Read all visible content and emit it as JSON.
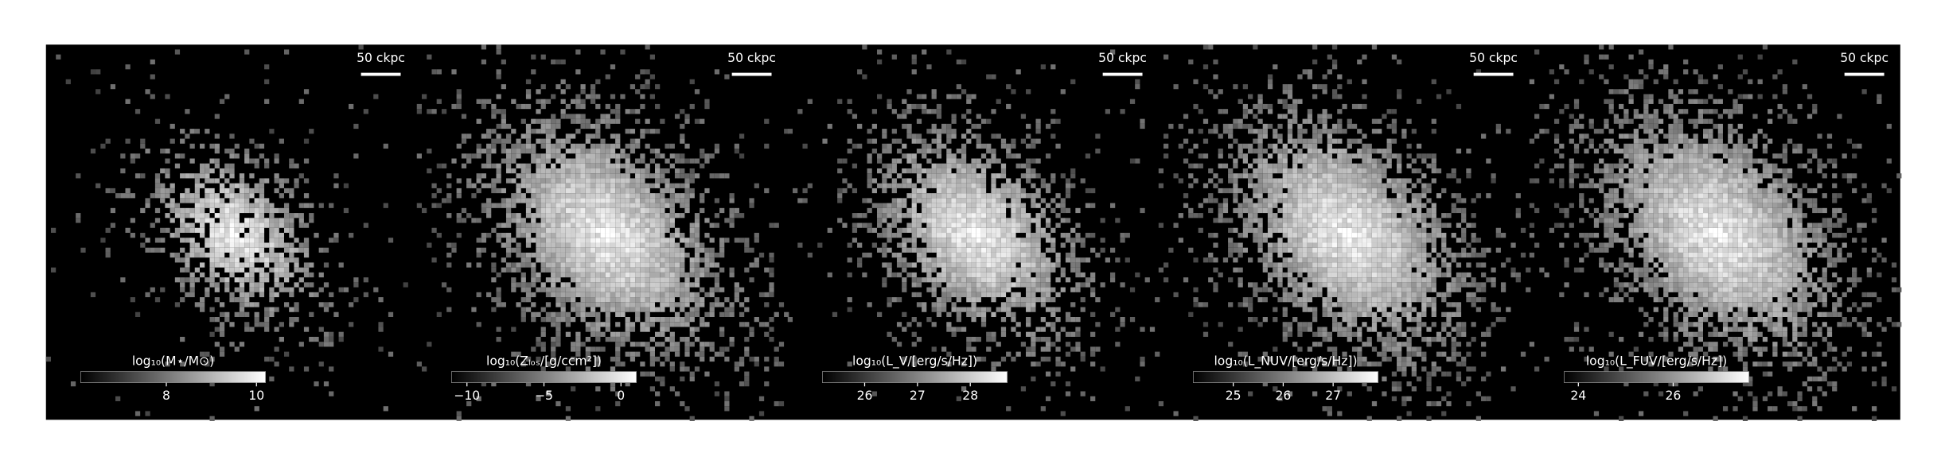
{
  "chart_data": [
    {
      "type": "image",
      "colorbar_label": "log₁₀(M⋆/M⊙)",
      "scale_bar": "50 ckpc",
      "clim": [
        6.1,
        10.2
      ],
      "cticks": [
        8,
        10
      ]
    },
    {
      "type": "image",
      "colorbar_label": "log₁₀(Zₗₒₛ/[g/ccm²])",
      "scale_bar": "50 ckpc",
      "clim": [
        -11,
        1
      ],
      "cticks": [
        {
          "value": -10,
          "label": "−10"
        },
        {
          "value": -5,
          "label": "−5"
        },
        0
      ]
    },
    {
      "type": "image",
      "colorbar_label": "log₁₀(L_V/[erg/s/Hz])",
      "scale_bar": "50 ckpc",
      "clim": [
        25.2,
        28.7
      ],
      "cticks": [
        26,
        27,
        28
      ]
    },
    {
      "type": "image",
      "colorbar_label": "log₁₀(L_NUV/[erg/s/Hz])",
      "scale_bar": "50 ckpc",
      "clim": [
        24.2,
        27.9
      ],
      "cticks": [
        25,
        26,
        27
      ]
    },
    {
      "type": "image",
      "colorbar_label": "log₁₀(L_FUV/[erg/s/Hz])",
      "scale_bar": "50 ckpc",
      "clim": [
        23.7,
        27.6
      ],
      "cticks": [
        24,
        26
      ]
    }
  ]
}
